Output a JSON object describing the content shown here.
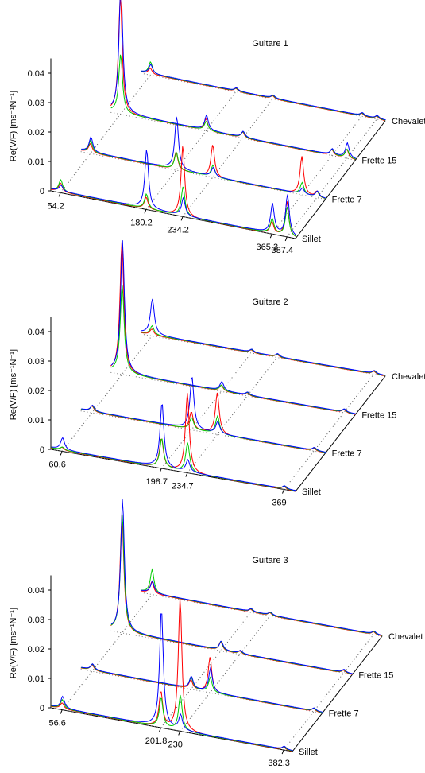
{
  "figure": {
    "ylabel": "Re(V/F) [ms⁻¹N⁻¹]",
    "ytick_labels": [
      "0",
      "0.01",
      "0.02",
      "0.03",
      "0.04"
    ],
    "depth_labels": [
      "Sillet",
      "Frette 7",
      "Frette 15",
      "Chevalet"
    ],
    "series_colors": {
      "red": "#ff0000",
      "green": "#00cc00",
      "blue": "#0000ff"
    }
  },
  "chart_data": [
    {
      "type": "line",
      "title": "Guitare 1",
      "ylabel": "Re(V/F) [ms⁻¹N⁻¹]",
      "yticks": [
        0,
        0.01,
        0.02,
        0.03,
        0.04
      ],
      "ylim": [
        0,
        0.045
      ],
      "depth_categories": [
        "Sillet",
        "Frette 7",
        "Frette 15",
        "Chevalet"
      ],
      "xtick_labels": [
        "54.2",
        "180.2",
        "234.2",
        "365.3",
        "387.4"
      ],
      "x_peaks": [
        54.2,
        180.2,
        234.2,
        365.3,
        387.4
      ],
      "grid": true,
      "series": [
        {
          "color": "red",
          "depth": "Sillet",
          "peaks": [
            [
              54.2,
              0.003
            ],
            [
              180.2,
              0.004
            ],
            [
              234.2,
              0.024
            ],
            [
              365.3,
              0.004
            ],
            [
              387.4,
              0.012
            ]
          ]
        },
        {
          "color": "green",
          "depth": "Sillet",
          "peaks": [
            [
              54.2,
              0.004
            ],
            [
              180.2,
              0.005
            ],
            [
              234.2,
              0.01
            ],
            [
              365.3,
              0.005
            ],
            [
              387.4,
              0.01
            ]
          ]
        },
        {
          "color": "blue",
          "depth": "Sillet",
          "peaks": [
            [
              54.2,
              0.002
            ],
            [
              180.2,
              0.02
            ],
            [
              234.2,
              0.006
            ],
            [
              365.3,
              0.01
            ],
            [
              387.4,
              0.014
            ]
          ]
        },
        {
          "color": "red",
          "depth": "Frette 7",
          "peaks": [
            [
              54.2,
              0.003
            ],
            [
              180.2,
              0.006
            ],
            [
              234.2,
              0.011
            ],
            [
              365.3,
              0.013
            ],
            [
              387.4,
              0.002
            ]
          ]
        },
        {
          "color": "green",
          "depth": "Frette 7",
          "peaks": [
            [
              54.2,
              0.004
            ],
            [
              180.2,
              0.006
            ],
            [
              234.2,
              0.004
            ],
            [
              365.3,
              0.004
            ],
            [
              387.4,
              0.002
            ]
          ]
        },
        {
          "color": "blue",
          "depth": "Frette 7",
          "peaks": [
            [
              54.2,
              0.005
            ],
            [
              180.2,
              0.018
            ],
            [
              234.2,
              0.003
            ],
            [
              365.3,
              0.002
            ],
            [
              387.4,
              0.002
            ]
          ]
        },
        {
          "color": "red",
          "depth": "Frette 15",
          "peaks": [
            [
              54.2,
              0.04
            ],
            [
              180.2,
              0.004
            ],
            [
              234.2,
              0.002
            ],
            [
              365.3,
              0.002
            ],
            [
              387.4,
              0.003
            ]
          ]
        },
        {
          "color": "green",
          "depth": "Frette 15",
          "peaks": [
            [
              54.2,
              0.02
            ],
            [
              180.2,
              0.003
            ],
            [
              234.2,
              0.002
            ],
            [
              365.3,
              0.002
            ],
            [
              387.4,
              0.003
            ]
          ]
        },
        {
          "color": "blue",
          "depth": "Frette 15",
          "peaks": [
            [
              54.2,
              0.045
            ],
            [
              180.2,
              0.005
            ],
            [
              234.2,
              0.002
            ],
            [
              365.3,
              0.002
            ],
            [
              387.4,
              0.005
            ]
          ]
        },
        {
          "color": "red",
          "depth": "Chevalet",
          "peaks": [
            [
              54.2,
              0.002
            ],
            [
              180.2,
              0.001
            ],
            [
              234.2,
              0.001
            ],
            [
              365.3,
              0.001
            ],
            [
              387.4,
              0.001
            ]
          ]
        },
        {
          "color": "green",
          "depth": "Chevalet",
          "peaks": [
            [
              54.2,
              0.004
            ],
            [
              180.2,
              0.001
            ],
            [
              234.2,
              0.001
            ],
            [
              365.3,
              0.001
            ],
            [
              387.4,
              0.001
            ]
          ]
        },
        {
          "color": "blue",
          "depth": "Chevalet",
          "peaks": [
            [
              54.2,
              0.003
            ],
            [
              180.2,
              0.001
            ],
            [
              234.2,
              0.001
            ],
            [
              365.3,
              0.001
            ],
            [
              387.4,
              0.001
            ]
          ]
        }
      ]
    },
    {
      "type": "line",
      "title": "Guitare 2",
      "ylabel": "Re(V/F) [ms⁻¹N⁻¹]",
      "yticks": [
        0,
        0.01,
        0.02,
        0.03,
        0.04
      ],
      "ylim": [
        0,
        0.045
      ],
      "depth_categories": [
        "Sillet",
        "Frette 7",
        "Frette 15",
        "Chevalet"
      ],
      "xtick_labels": [
        "60.6",
        "198.7",
        "234.7",
        "369"
      ],
      "x_peaks": [
        60.6,
        198.7,
        234.7,
        369
      ],
      "grid": true,
      "series": [
        {
          "color": "red",
          "depth": "Sillet",
          "peaks": [
            [
              60.6,
              0.001
            ],
            [
              198.7,
              0.01
            ],
            [
              234.7,
              0.027
            ],
            [
              369,
              0.001
            ]
          ]
        },
        {
          "color": "green",
          "depth": "Sillet",
          "peaks": [
            [
              60.6,
              0.001
            ],
            [
              198.7,
              0.01
            ],
            [
              234.7,
              0.01
            ],
            [
              369,
              0.001
            ]
          ]
        },
        {
          "color": "blue",
          "depth": "Sillet",
          "peaks": [
            [
              60.6,
              0.004
            ],
            [
              198.7,
              0.022
            ],
            [
              234.7,
              0.004
            ],
            [
              369,
              0.001
            ]
          ]
        },
        {
          "color": "red",
          "depth": "Frette 7",
          "peaks": [
            [
              60.6,
              0.002
            ],
            [
              198.7,
              0.006
            ],
            [
              234.7,
              0.014
            ],
            [
              369,
              0.001
            ]
          ]
        },
        {
          "color": "green",
          "depth": "Frette 7",
          "peaks": [
            [
              60.6,
              0.002
            ],
            [
              198.7,
              0.004
            ],
            [
              234.7,
              0.006
            ],
            [
              369,
              0.001
            ]
          ]
        },
        {
          "color": "blue",
          "depth": "Frette 7",
          "peaks": [
            [
              60.6,
              0.002
            ],
            [
              198.7,
              0.018
            ],
            [
              234.7,
              0.004
            ],
            [
              369,
              0.001
            ]
          ]
        },
        {
          "color": "red",
          "depth": "Frette 15",
          "peaks": [
            [
              60.6,
              0.045
            ],
            [
              198.7,
              0.002
            ],
            [
              234.7,
              0.001
            ],
            [
              369,
              0.001
            ]
          ]
        },
        {
          "color": "green",
          "depth": "Frette 15",
          "peaks": [
            [
              60.6,
              0.03
            ],
            [
              198.7,
              0.002
            ],
            [
              234.7,
              0.001
            ],
            [
              369,
              0.001
            ]
          ]
        },
        {
          "color": "blue",
          "depth": "Frette 15",
          "peaks": [
            [
              60.6,
              0.045
            ],
            [
              198.7,
              0.003
            ],
            [
              234.7,
              0.001
            ],
            [
              369,
              0.001
            ]
          ]
        },
        {
          "color": "red",
          "depth": "Chevalet",
          "peaks": [
            [
              60.6,
              0.002
            ],
            [
              198.7,
              0.001
            ],
            [
              234.7,
              0.001
            ],
            [
              369,
              0.001
            ]
          ]
        },
        {
          "color": "green",
          "depth": "Chevalet",
          "peaks": [
            [
              60.6,
              0.003
            ],
            [
              198.7,
              0.001
            ],
            [
              234.7,
              0.001
            ],
            [
              369,
              0.001
            ]
          ]
        },
        {
          "color": "blue",
          "depth": "Chevalet",
          "peaks": [
            [
              60.6,
              0.012
            ],
            [
              198.7,
              0.001
            ],
            [
              234.7,
              0.001
            ],
            [
              369,
              0.001
            ]
          ]
        }
      ]
    },
    {
      "type": "line",
      "title": "Guitare 3",
      "ylabel": "Re(V/F) [ms⁻¹N⁻¹]",
      "yticks": [
        0,
        0.01,
        0.02,
        0.03,
        0.04
      ],
      "ylim": [
        0,
        0.045
      ],
      "depth_categories": [
        "Sillet",
        "Frette 7",
        "Frette 15",
        "Chevalet"
      ],
      "xtick_labels": [
        "56.6",
        "201.8",
        "230",
        "382.3"
      ],
      "x_peaks": [
        56.6,
        201.8,
        230,
        382.3
      ],
      "grid": true,
      "series": [
        {
          "color": "red",
          "depth": "Sillet",
          "peaks": [
            [
              56.6,
              0.002
            ],
            [
              201.8,
              0.012
            ],
            [
              230,
              0.045
            ],
            [
              382.3,
              0.001
            ]
          ]
        },
        {
          "color": "green",
          "depth": "Sillet",
          "peaks": [
            [
              56.6,
              0.003
            ],
            [
              201.8,
              0.01
            ],
            [
              230,
              0.012
            ],
            [
              382.3,
              0.001
            ]
          ]
        },
        {
          "color": "blue",
          "depth": "Sillet",
          "peaks": [
            [
              56.6,
              0.004
            ],
            [
              201.8,
              0.04
            ],
            [
              230,
              0.005
            ],
            [
              382.3,
              0.001
            ]
          ]
        },
        {
          "color": "red",
          "depth": "Frette 7",
          "peaks": [
            [
              56.6,
              0.002
            ],
            [
              201.8,
              0.003
            ],
            [
              230,
              0.012
            ],
            [
              382.3,
              0.001
            ]
          ]
        },
        {
          "color": "green",
          "depth": "Frette 7",
          "peaks": [
            [
              56.6,
              0.002
            ],
            [
              201.8,
              0.004
            ],
            [
              230,
              0.005
            ],
            [
              382.3,
              0.001
            ]
          ]
        },
        {
          "color": "blue",
          "depth": "Frette 7",
          "peaks": [
            [
              56.6,
              0.002
            ],
            [
              201.8,
              0.004
            ],
            [
              230,
              0.008
            ],
            [
              382.3,
              0.001
            ]
          ]
        },
        {
          "color": "red",
          "depth": "Frette 15",
          "peaks": [
            [
              56.6,
              0.04
            ],
            [
              201.8,
              0.003
            ],
            [
              230,
              0.001
            ],
            [
              382.3,
              0.001
            ]
          ]
        },
        {
          "color": "green",
          "depth": "Frette 15",
          "peaks": [
            [
              56.6,
              0.04
            ],
            [
              201.8,
              0.003
            ],
            [
              230,
              0.001
            ],
            [
              382.3,
              0.001
            ]
          ]
        },
        {
          "color": "blue",
          "depth": "Frette 15",
          "peaks": [
            [
              56.6,
              0.045
            ],
            [
              201.8,
              0.003
            ],
            [
              230,
              0.001
            ],
            [
              382.3,
              0.001
            ]
          ]
        },
        {
          "color": "red",
          "depth": "Chevalet",
          "peaks": [
            [
              56.6,
              0.004
            ],
            [
              201.8,
              0.001
            ],
            [
              230,
              0.001
            ],
            [
              382.3,
              0.001
            ]
          ]
        },
        {
          "color": "green",
          "depth": "Chevalet",
          "peaks": [
            [
              56.6,
              0.008
            ],
            [
              201.8,
              0.001
            ],
            [
              230,
              0.001
            ],
            [
              382.3,
              0.001
            ]
          ]
        },
        {
          "color": "blue",
          "depth": "Chevalet",
          "peaks": [
            [
              56.6,
              0.004
            ],
            [
              201.8,
              0.001
            ],
            [
              230,
              0.001
            ],
            [
              382.3,
              0.001
            ]
          ]
        }
      ]
    }
  ]
}
